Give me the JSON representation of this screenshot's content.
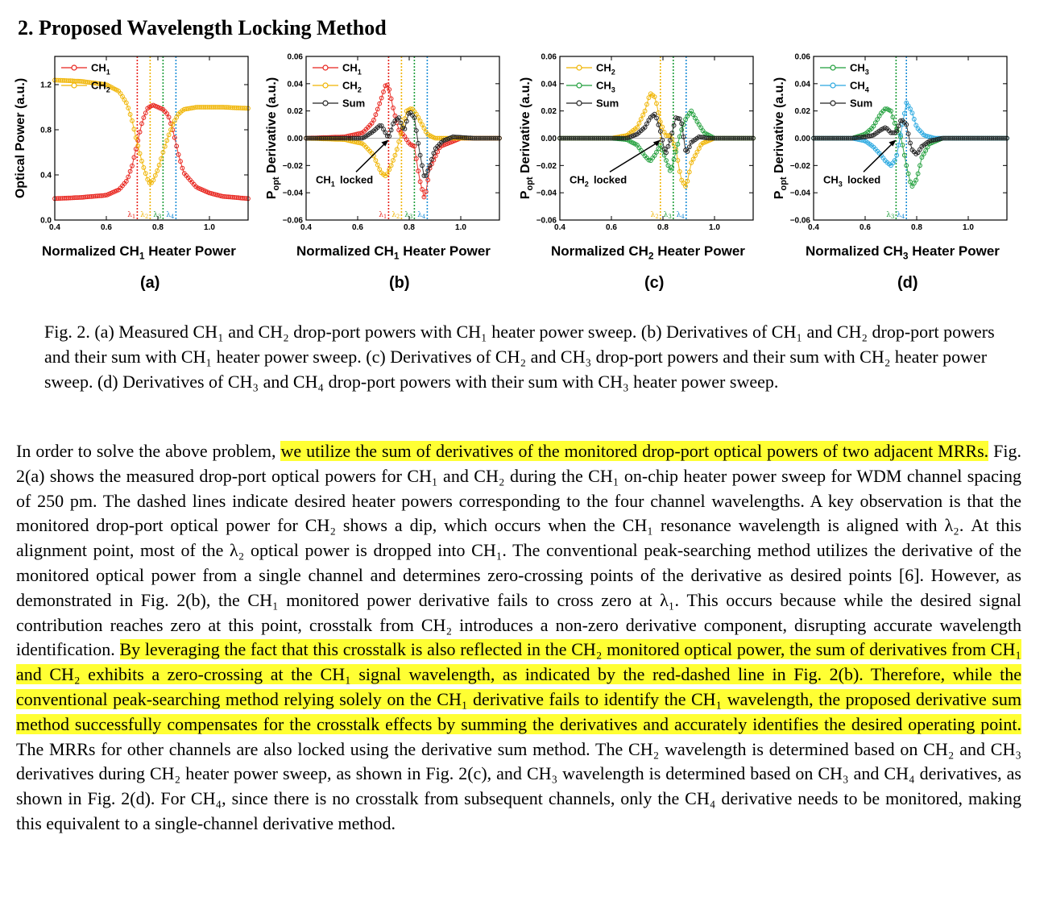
{
  "section_heading": "2.  Proposed Wavelength Locking Method",
  "figure": {
    "x_label_html": [
      "Normalized CH<sub>1</sub> Heater Power",
      "Normalized CH<sub>1</sub> Heater Power",
      "Normalized CH<sub>2</sub> Heater Power",
      "Normalized CH<sub>3</sub> Heater Power"
    ],
    "panel_labels": [
      "(a)",
      "(b)",
      "(c)",
      "(d)"
    ]
  },
  "caption_html": "Fig. 2. (a) Measured CH₁ and CH₂ drop-port powers with CH₁ heater power sweep. (b) Derivatives of CH₁ and CH₂ drop-port powers and their sum with CH₁ heater power sweep. (c) Derivatives of CH₂ and CH₃ drop-port powers and their sum with CH₂ heater power sweep. (d) Derivatives of CH₃ and CH₄ drop-port powers with their sum with CH₃ heater power sweep.",
  "body_html": "In order to solve the above problem, <mark>we utilize the sum of derivatives of the monitored drop-port optical powers of two adjacent MRRs.</mark> Fig. 2(a) shows the measured drop-port optical powers for CH₁ and CH₂ during the CH₁ on-chip heater power sweep for WDM channel spacing of 250 pm. The dashed lines indicate desired heater powers corresponding to the four channel wavelengths. A key observation is that the monitored drop-port optical power for CH₂ shows a dip, which occurs when the CH₁ resonance wavelength is aligned with λ₂. At this alignment point, most of the λ₂ optical power is dropped into CH₁. The conventional peak-searching method utilizes the derivative of the monitored optical power from a single channel and determines zero-crossing points of the derivative as desired points [6]. However, as demonstrated in Fig. 2(b), the CH₁ monitored power derivative fails to cross zero at λ₁. This occurs because while the desired signal contribution reaches zero at this point, crosstalk from CH₂ introduces a non-zero derivative component, disrupting accurate wavelength identification. <mark>By leveraging the fact that this crosstalk is also reflected in the CH₂ monitored optical power, the sum of derivatives from CH₁ and CH₂ exhibits a zero-crossing at the CH₁ signal wavelength, as indicated by the red-dashed line in Fig. 2(b). Therefore, while the conventional peak-searching method relying solely on the CH₁ derivative fails to identify the CH₁ wavelength, the proposed derivative sum method successfully compensates for the crosstalk effects by summing the derivatives and accurately identifies the desired operating point.</mark> The MRRs for other channels are also locked using the derivative sum method. The CH₂ wavelength is determined based on CH₂ and CH₃ derivatives during CH₂ heater power sweep, as shown in Fig. 2(c), and CH₃ wavelength is determined based on CH₃ and CH₄ derivatives, as shown in Fig. 2(d). For CH₄, since there is no crosstalk from subsequent channels, only the CH₄ derivative needs to be monitored, making this equivalent to a single-channel derivative method.",
  "chart_data": [
    {
      "type": "line",
      "panel": "(a)",
      "xlabel": "Normalized CH1 Heater Power",
      "ylabel": "Optical Power (a.u.)",
      "xlim": [
        0.4,
        1.15
      ],
      "ylim": [
        0.0,
        1.45
      ],
      "xticks": [
        0.4,
        0.6,
        0.8,
        1.0
      ],
      "yticks": [
        0.0,
        0.4,
        0.8,
        1.2
      ],
      "legend_position": "top-left",
      "series": [
        {
          "name": "CH1",
          "color": "#e8231c",
          "x": [
            0.4,
            0.5,
            0.6,
            0.65,
            0.68,
            0.7,
            0.72,
            0.74,
            0.76,
            0.78,
            0.8,
            0.82,
            0.84,
            0.86,
            0.88,
            0.9,
            0.95,
            1.0,
            1.05,
            1.1,
            1.15
          ],
          "values": [
            0.19,
            0.2,
            0.22,
            0.27,
            0.35,
            0.48,
            0.68,
            0.88,
            0.99,
            1.02,
            1.0,
            0.98,
            0.93,
            0.78,
            0.58,
            0.42,
            0.29,
            0.24,
            0.21,
            0.2,
            0.19
          ]
        },
        {
          "name": "CH2",
          "color": "#f0b400",
          "x": [
            0.4,
            0.5,
            0.6,
            0.65,
            0.68,
            0.7,
            0.72,
            0.74,
            0.76,
            0.77,
            0.78,
            0.8,
            0.82,
            0.84,
            0.86,
            0.88,
            0.9,
            0.95,
            1.0,
            1.05,
            1.15
          ],
          "values": [
            1.24,
            1.23,
            1.2,
            1.14,
            1.03,
            0.88,
            0.68,
            0.5,
            0.36,
            0.32,
            0.34,
            0.45,
            0.6,
            0.74,
            0.86,
            0.94,
            0.98,
            1.0,
            1.0,
            1.0,
            0.99
          ]
        }
      ],
      "markers": [
        {
          "label": "λ1",
          "x": 0.72,
          "color": "#e8231c"
        },
        {
          "label": "λ2",
          "x": 0.77,
          "color": "#f0b400"
        },
        {
          "label": "λ3",
          "x": 0.82,
          "color": "#1f9e3a"
        },
        {
          "label": "λ4",
          "x": 0.87,
          "color": "#1f8fd8"
        }
      ]
    },
    {
      "type": "line",
      "panel": "(b)",
      "xlabel": "Normalized CH1 Heater Power",
      "ylabel": "Popt Derivative (a.u.)",
      "xlim": [
        0.4,
        1.15
      ],
      "ylim": [
        -0.06,
        0.06
      ],
      "xticks": [
        0.4,
        0.6,
        0.8,
        1.0
      ],
      "yticks": [
        -0.06,
        -0.04,
        -0.02,
        0.0,
        0.02,
        0.04,
        0.06
      ],
      "legend_position": "top-left",
      "annotation": "CH1 locked",
      "series": [
        {
          "name": "CH1",
          "color": "#e8231c",
          "x": [
            0.4,
            0.55,
            0.62,
            0.66,
            0.69,
            0.71,
            0.72,
            0.74,
            0.76,
            0.78,
            0.8,
            0.82,
            0.84,
            0.86,
            0.88,
            0.92,
            1.0,
            1.15
          ],
          "values": [
            0.0,
            0.001,
            0.004,
            0.012,
            0.028,
            0.04,
            0.038,
            0.02,
            0.006,
            0.002,
            -0.004,
            -0.006,
            -0.03,
            -0.045,
            -0.022,
            -0.006,
            0.0,
            0.0
          ]
        },
        {
          "name": "CH2",
          "color": "#f0b400",
          "x": [
            0.4,
            0.55,
            0.62,
            0.66,
            0.69,
            0.71,
            0.73,
            0.75,
            0.77,
            0.79,
            0.81,
            0.83,
            0.85,
            0.87,
            0.9,
            0.95,
            1.0,
            1.15
          ],
          "values": [
            0.0,
            -0.001,
            -0.004,
            -0.012,
            -0.025,
            -0.028,
            -0.02,
            -0.01,
            0.005,
            0.02,
            0.022,
            0.017,
            0.01,
            0.003,
            0.0,
            0.0,
            0.0,
            0.0
          ]
        },
        {
          "name": "Sum",
          "color": "#222222",
          "x": [
            0.4,
            0.55,
            0.62,
            0.66,
            0.69,
            0.72,
            0.74,
            0.76,
            0.78,
            0.8,
            0.82,
            0.84,
            0.86,
            0.88,
            0.9,
            0.93,
            0.97,
            1.05,
            1.15
          ],
          "values": [
            0.0,
            0.0,
            0.0,
            0.005,
            0.01,
            0.0,
            0.012,
            0.015,
            0.005,
            0.02,
            0.015,
            -0.01,
            -0.03,
            -0.02,
            -0.008,
            -0.002,
            0.001,
            0.0,
            0.0
          ]
        }
      ],
      "markers": [
        {
          "label": "λ1",
          "x": 0.72,
          "color": "#e8231c"
        },
        {
          "label": "λ2",
          "x": 0.77,
          "color": "#f0b400"
        },
        {
          "label": "λ3",
          "x": 0.82,
          "color": "#1f9e3a"
        },
        {
          "label": "λ4",
          "x": 0.87,
          "color": "#1f8fd8"
        }
      ]
    },
    {
      "type": "line",
      "panel": "(c)",
      "xlabel": "Normalized CH2 Heater Power",
      "ylabel": "Popt Derivative (a.u.)",
      "xlim": [
        0.4,
        1.15
      ],
      "ylim": [
        -0.06,
        0.06
      ],
      "xticks": [
        0.4,
        0.6,
        0.8,
        1.0
      ],
      "yticks": [
        -0.06,
        -0.04,
        -0.02,
        0.0,
        0.02,
        0.04,
        0.06
      ],
      "legend_position": "top-left",
      "annotation": "CH2 locked",
      "series": [
        {
          "name": "CH2",
          "color": "#f0b400",
          "x": [
            0.4,
            0.6,
            0.66,
            0.7,
            0.73,
            0.75,
            0.77,
            0.79,
            0.81,
            0.83,
            0.85,
            0.87,
            0.89,
            0.91,
            0.95,
            1.0,
            1.15
          ],
          "values": [
            0.0,
            0.0,
            0.002,
            0.008,
            0.02,
            0.033,
            0.03,
            0.012,
            0.002,
            0.002,
            -0.008,
            -0.03,
            -0.036,
            -0.018,
            -0.004,
            0.0,
            0.0
          ]
        },
        {
          "name": "CH3",
          "color": "#1f9e3a",
          "x": [
            0.4,
            0.6,
            0.66,
            0.7,
            0.73,
            0.75,
            0.77,
            0.79,
            0.81,
            0.83,
            0.85,
            0.87,
            0.89,
            0.91,
            0.93,
            0.96,
            1.0,
            1.15
          ],
          "values": [
            0.0,
            0.0,
            -0.001,
            -0.005,
            -0.013,
            -0.017,
            -0.012,
            -0.005,
            -0.015,
            -0.025,
            -0.01,
            0.005,
            0.015,
            0.02,
            0.013,
            0.004,
            0.0,
            0.0
          ]
        },
        {
          "name": "Sum",
          "color": "#222222",
          "x": [
            0.4,
            0.6,
            0.66,
            0.7,
            0.73,
            0.75,
            0.77,
            0.79,
            0.81,
            0.83,
            0.85,
            0.87,
            0.89,
            0.91,
            0.94,
            0.98,
            1.05,
            1.15
          ],
          "values": [
            0.0,
            0.0,
            0.0,
            0.003,
            0.008,
            0.015,
            0.018,
            0.005,
            -0.012,
            0.0,
            0.015,
            0.014,
            -0.012,
            -0.003,
            0.001,
            0.0,
            0.0,
            0.0
          ]
        }
      ],
      "markers": [
        {
          "label": "λ2",
          "x": 0.79,
          "color": "#f0b400"
        },
        {
          "label": "λ3",
          "x": 0.84,
          "color": "#1f9e3a"
        },
        {
          "label": "λ4",
          "x": 0.89,
          "color": "#1f8fd8"
        }
      ]
    },
    {
      "type": "line",
      "panel": "(d)",
      "xlabel": "Normalized CH3 Heater Power",
      "ylabel": "Popt Derivative (a.u.)",
      "xlim": [
        0.4,
        1.15
      ],
      "ylim": [
        -0.06,
        0.06
      ],
      "xticks": [
        0.4,
        0.6,
        0.8,
        1.0
      ],
      "yticks": [
        -0.06,
        -0.04,
        -0.02,
        0.0,
        0.02,
        0.04,
        0.06
      ],
      "legend_position": "top-left",
      "annotation": "CH3 locked",
      "series": [
        {
          "name": "CH3",
          "color": "#1f9e3a",
          "x": [
            0.4,
            0.55,
            0.6,
            0.63,
            0.66,
            0.68,
            0.7,
            0.72,
            0.74,
            0.76,
            0.78,
            0.8,
            0.82,
            0.85,
            0.9,
            1.0,
            1.15
          ],
          "values": [
            0.0,
            0.0,
            0.003,
            0.008,
            0.018,
            0.022,
            0.02,
            0.008,
            0.0,
            -0.02,
            -0.036,
            -0.03,
            -0.014,
            -0.004,
            0.0,
            0.0,
            0.0
          ]
        },
        {
          "name": "CH4",
          "color": "#29a8e0",
          "x": [
            0.4,
            0.55,
            0.6,
            0.63,
            0.66,
            0.68,
            0.7,
            0.72,
            0.74,
            0.76,
            0.78,
            0.8,
            0.83,
            0.87,
            0.92,
            1.0,
            1.15
          ],
          "values": [
            0.0,
            0.0,
            -0.002,
            -0.006,
            -0.012,
            -0.017,
            -0.02,
            -0.015,
            0.005,
            0.026,
            0.02,
            0.008,
            0.002,
            0.0,
            0.0,
            0.0,
            0.0
          ]
        },
        {
          "name": "Sum",
          "color": "#222222",
          "x": [
            0.4,
            0.55,
            0.6,
            0.63,
            0.66,
            0.68,
            0.7,
            0.72,
            0.74,
            0.76,
            0.78,
            0.8,
            0.82,
            0.85,
            0.9,
            0.95,
            1.0,
            1.15
          ],
          "values": [
            0.0,
            0.0,
            0.001,
            0.002,
            0.006,
            0.008,
            0.004,
            0.004,
            0.014,
            0.01,
            -0.008,
            -0.012,
            -0.006,
            -0.002,
            0.0,
            0.0,
            0.0,
            0.0
          ]
        }
      ],
      "markers": [
        {
          "label": "λ3",
          "x": 0.72,
          "color": "#1f9e3a"
        },
        {
          "label": "λ4",
          "x": 0.76,
          "color": "#1f8fd8"
        }
      ]
    }
  ]
}
